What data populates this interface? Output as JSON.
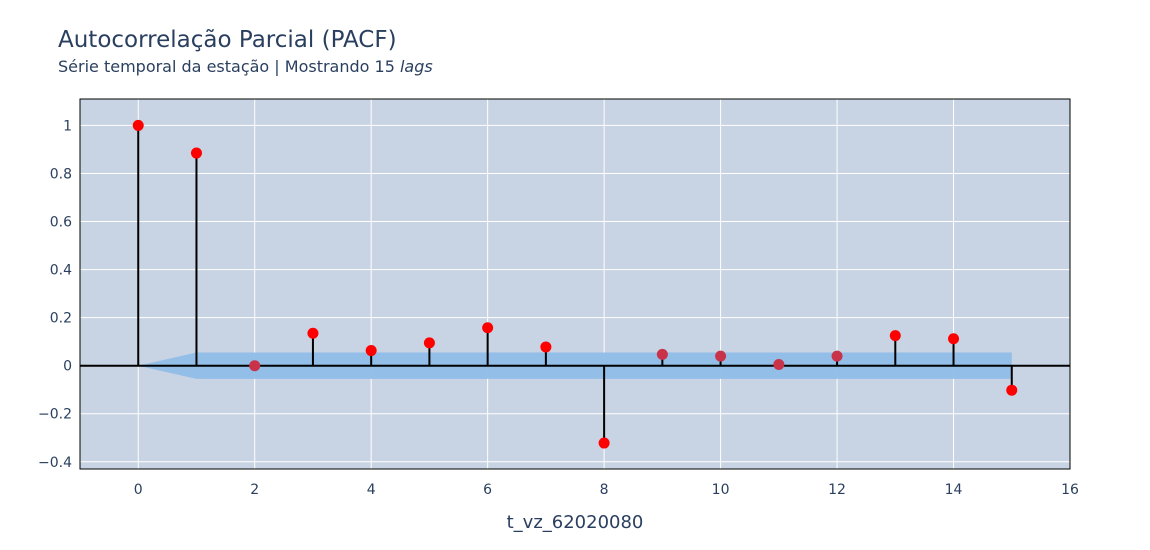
{
  "header": {
    "title": "Autocorrelação Parcial (PACF)",
    "subtitle_prefix": "Série temporal da estação | Mostrando 15 ",
    "subtitle_italic": "lags"
  },
  "colors": {
    "plot_background": "#c8d3e3",
    "grid": "#ffffff",
    "confidence_band": "#8fbde8",
    "stem": "#000000",
    "marker": "#ff0000",
    "marker_inside_band": "#c8334a"
  },
  "chart_data": {
    "type": "scatter",
    "title": "Autocorrelação Parcial (PACF)",
    "subtitle": "Série temporal da estação | Mostrando 15 lags",
    "xlabel": "t_vz_62020080",
    "ylabel": "",
    "xlim": [
      -1,
      16
    ],
    "ylim": [
      -0.43,
      1.11
    ],
    "grid": true,
    "legend": "none",
    "x_ticks": [
      0,
      2,
      4,
      6,
      8,
      10,
      12,
      14,
      16
    ],
    "x_tick_labels": [
      "0",
      "2",
      "4",
      "6",
      "8",
      "10",
      "12",
      "14",
      "16"
    ],
    "y_ticks": [
      -0.4,
      -0.2,
      0,
      0.2,
      0.4,
      0.6,
      0.8,
      1
    ],
    "y_tick_labels": [
      "−0.4",
      "−0.2",
      "0",
      "0.2",
      "0.4",
      "0.6",
      "0.8",
      "1"
    ],
    "lags": [
      0,
      1,
      2,
      3,
      4,
      5,
      6,
      7,
      8,
      9,
      10,
      11,
      12,
      13,
      14,
      15
    ],
    "pacf": [
      1.0,
      0.885,
      0.0,
      0.135,
      0.063,
      0.095,
      0.158,
      0.078,
      -0.322,
      0.047,
      0.04,
      0.005,
      0.04,
      0.125,
      0.112,
      -0.102
    ],
    "confidence_interval": {
      "x": [
        0,
        1,
        15
      ],
      "upper": [
        0,
        0.055,
        0.055
      ],
      "lower": [
        0,
        -0.055,
        -0.055
      ]
    }
  }
}
